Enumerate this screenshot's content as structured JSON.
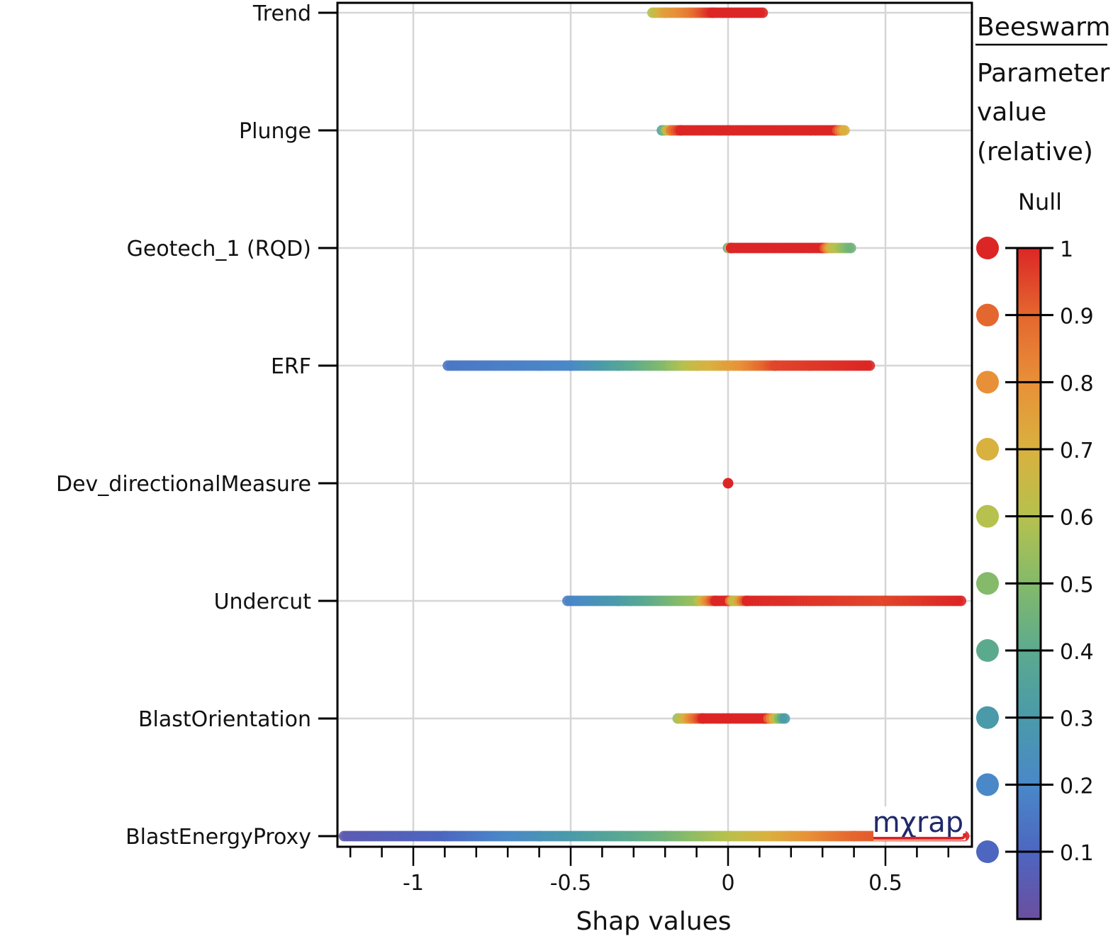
{
  "chart_data": {
    "type": "scatter",
    "subtype": "beeswarm",
    "xlabel": "Shap values",
    "xlim": [
      -1.24,
      0.77
    ],
    "xticks": [
      -1,
      -0.5,
      0,
      0.5
    ],
    "xtick_labels": [
      "-1",
      "-0.5",
      "0",
      "0.5"
    ],
    "grid": true,
    "categories": [
      "Trend",
      "Plunge",
      "Geotech_1 (RQD)",
      "ERF",
      "Dev_directionalMeasure",
      "Undercut",
      "BlastOrientation",
      "BlastEnergyProxy"
    ],
    "series": [
      {
        "name": "Trend",
        "points": [
          [
            -0.24,
            0.6
          ],
          [
            -0.2,
            0.75
          ],
          [
            -0.12,
            0.85
          ],
          [
            -0.05,
            1
          ],
          [
            0.11,
            1
          ]
        ]
      },
      {
        "name": "Plunge",
        "points": [
          [
            -0.21,
            0.35
          ],
          [
            -0.18,
            0.85
          ],
          [
            -0.15,
            1
          ],
          [
            0.34,
            1
          ],
          [
            0.37,
            0.7
          ]
        ]
      },
      {
        "name": "Geotech_1 (RQD)",
        "points": [
          [
            0,
            0.4
          ],
          [
            0.01,
            1
          ],
          [
            0.3,
            1
          ],
          [
            0.33,
            0.65
          ],
          [
            0.39,
            0.45
          ]
        ]
      },
      {
        "name": "ERF",
        "points": [
          [
            -0.89,
            0.15
          ],
          [
            -0.5,
            0.2
          ],
          [
            -0.35,
            0.35
          ],
          [
            -0.2,
            0.5
          ],
          [
            -0.1,
            0.65
          ],
          [
            0.05,
            0.8
          ],
          [
            0.15,
            0.95
          ],
          [
            0.45,
            1
          ]
        ]
      },
      {
        "name": "Dev_directionalMeasure",
        "points": [
          [
            0,
            1
          ]
        ]
      },
      {
        "name": "Undercut",
        "points": [
          [
            -0.51,
            0.18
          ],
          [
            -0.35,
            0.3
          ],
          [
            -0.1,
            0.55
          ],
          [
            -0.04,
            1
          ],
          [
            0.0,
            1
          ],
          [
            0.02,
            0.6
          ],
          [
            0.06,
            1
          ],
          [
            0.5,
            0.95
          ],
          [
            0.74,
            1
          ]
        ]
      },
      {
        "name": "BlastOrientation",
        "points": [
          [
            -0.16,
            0.55
          ],
          [
            -0.12,
            0.8
          ],
          [
            -0.08,
            1
          ],
          [
            0.12,
            1
          ],
          [
            0.18,
            0.3
          ]
        ]
      },
      {
        "name": "BlastEnergyProxy",
        "points": [
          [
            -1.22,
            0.05
          ],
          [
            -0.9,
            0.1
          ],
          [
            -0.6,
            0.25
          ],
          [
            -0.2,
            0.45
          ],
          [
            0,
            0.6
          ],
          [
            0.2,
            0.75
          ],
          [
            0.4,
            0.9
          ],
          [
            0.75,
            1
          ]
        ]
      }
    ],
    "legend": {
      "title": "Beeswarm",
      "subtitle_lines": [
        "Parameter",
        "value",
        "(relative)"
      ],
      "null_label": "Null",
      "swatch_values": [
        1,
        0.9,
        0.8,
        0.7,
        0.6,
        0.5,
        0.4,
        0.3,
        0.2,
        0.1
      ],
      "colorbar_ticks": [
        1,
        0.9,
        0.8,
        0.7,
        0.6,
        0.5,
        0.4,
        0.3,
        0.2,
        0.1
      ],
      "colorbar_tick_labels": [
        "1",
        "0.9",
        "0.8",
        "0.7",
        "0.6",
        "0.5",
        "0.4",
        "0.3",
        "0.2",
        "0.1"
      ],
      "placement": "right"
    },
    "colormap": [
      "#6b4fa0",
      "#4d66c0",
      "#4a88c8",
      "#4a9aaa",
      "#5caa8e",
      "#84ba6a",
      "#b6c14e",
      "#d9b13f",
      "#e89038",
      "#e4672f",
      "#dc2626"
    ]
  },
  "logo": "mχrap"
}
